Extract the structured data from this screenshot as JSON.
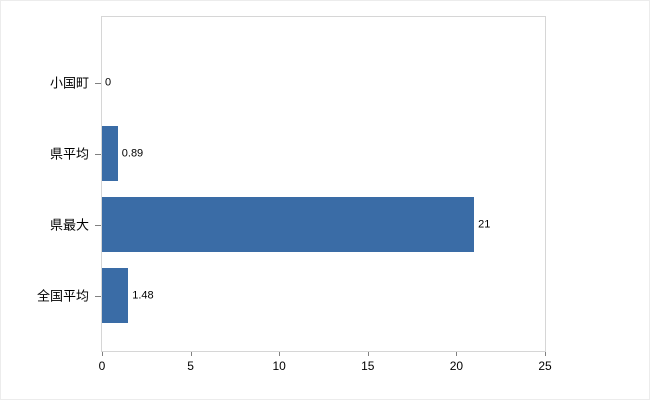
{
  "chart_data": {
    "type": "bar",
    "orientation": "horizontal",
    "title": "",
    "xlabel": "",
    "ylabel": "",
    "categories": [
      "小国町",
      "県平均",
      "県最大",
      "全国平均"
    ],
    "values": [
      0,
      0.89,
      21,
      1.48
    ],
    "value_labels": [
      "0",
      "0.89",
      "21",
      "1.48"
    ],
    "xlim": [
      0,
      25
    ],
    "x_ticks": [
      0,
      5,
      10,
      15,
      20,
      25
    ],
    "grid": false,
    "legend": null,
    "bar_color": "#3a6ca6",
    "plot_border_color": "#d6d6d6",
    "tick_color": "#808080"
  }
}
